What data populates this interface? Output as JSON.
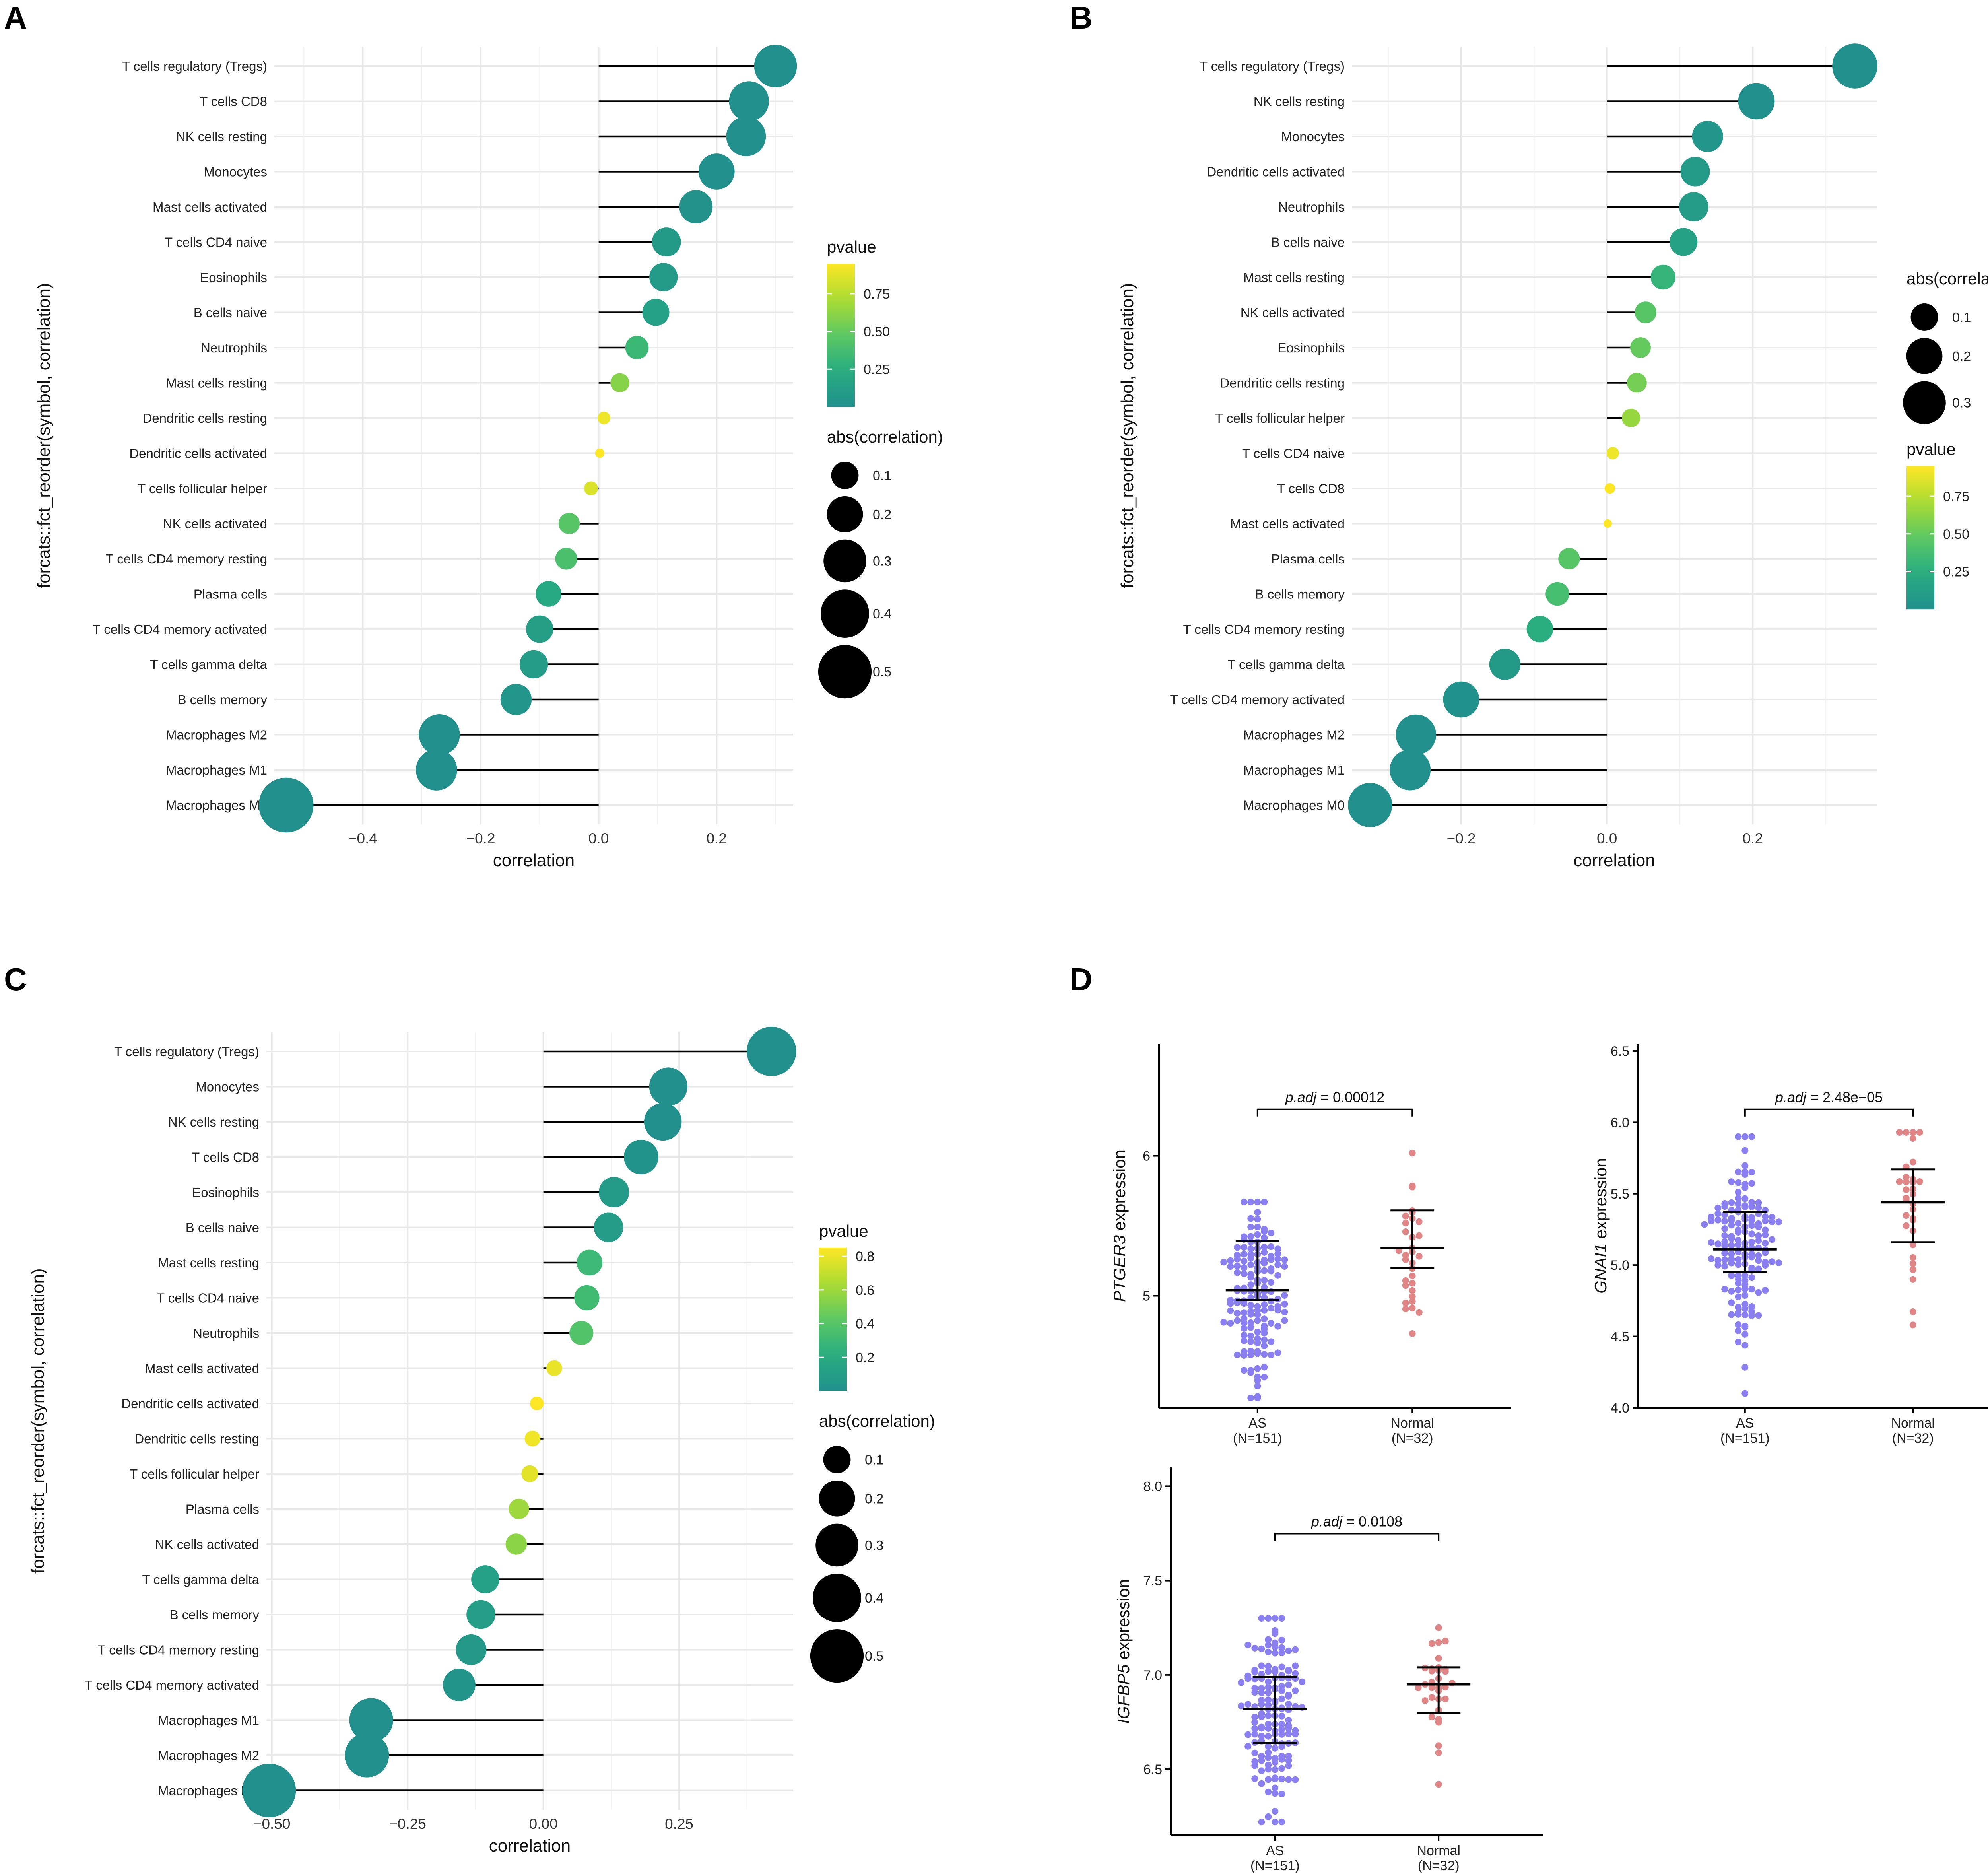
{
  "figure": {
    "panels": [
      "A",
      "B",
      "C",
      "D"
    ]
  },
  "colors": {
    "viridis_low": "#21908c",
    "viridis_high": "#fde725",
    "as_color": "#8a7ff0",
    "normal_color": "#e08585"
  },
  "chart_data": [
    {
      "panel": "A",
      "type": "scatter",
      "style": "lollipop",
      "xlabel": "correlation",
      "ylabel": "forcats::fct_reorder(symbol, correlation)",
      "xlim": [
        -0.55,
        0.33
      ],
      "xticks": [
        -0.4,
        -0.2,
        0.0,
        0.2
      ],
      "xtick_labels": [
        "−0.4",
        "−0.2",
        "0.0",
        "0.2"
      ],
      "legend_pvalue": {
        "title": "pvalue",
        "labels": [
          "0.75",
          "0.50",
          "0.25"
        ],
        "values": [
          0.75,
          0.5,
          0.25
        ],
        "range": [
          0.0,
          0.95
        ]
      },
      "legend_size": {
        "title": "abs(correlation)",
        "labels": [
          "0.1",
          "0.2",
          "0.3",
          "0.4",
          "0.5"
        ],
        "values": [
          0.1,
          0.2,
          0.3,
          0.4,
          0.5
        ]
      },
      "categories": [
        "T cells regulatory (Tregs)",
        "T cells CD8",
        "NK cells resting",
        "Monocytes",
        "Mast cells activated",
        "T cells CD4 naive",
        "Eosinophils",
        "B cells naive",
        "Neutrophils",
        "Mast cells resting",
        "Dendritic cells resting",
        "Dendritic cells activated",
        "T cells follicular helper",
        "NK cells activated",
        "T cells CD4 memory resting",
        "Plasma cells",
        "T cells CD4 memory activated",
        "T cells gamma delta",
        "B cells memory",
        "Macrophages M2",
        "Macrophages M1",
        "Macrophages M0"
      ],
      "correlation": [
        0.3,
        0.255,
        0.25,
        0.2,
        0.165,
        0.115,
        0.11,
        0.097,
        0.065,
        0.036,
        0.009,
        0.002,
        -0.013,
        -0.05,
        -0.055,
        -0.085,
        -0.1,
        -0.11,
        -0.14,
        -0.27,
        -0.275,
        -0.53
      ],
      "pvalue": [
        0.0,
        0.0,
        0.0,
        0.0,
        0.02,
        0.08,
        0.09,
        0.13,
        0.33,
        0.6,
        0.9,
        0.98,
        0.85,
        0.45,
        0.4,
        0.2,
        0.12,
        0.1,
        0.05,
        0.0,
        0.0,
        0.0
      ]
    },
    {
      "panel": "B",
      "type": "scatter",
      "style": "lollipop",
      "xlabel": "correlation",
      "ylabel": "forcats::fct_reorder(symbol, correlation)",
      "xlim": [
        -0.35,
        0.37
      ],
      "xticks": [
        -0.2,
        0.0,
        0.2
      ],
      "xtick_labels": [
        "−0.2",
        "0.0",
        "0.2"
      ],
      "legend_size": {
        "title": "abs(correlation)",
        "labels": [
          "0.1",
          "0.2",
          "0.3"
        ],
        "values": [
          0.1,
          0.2,
          0.3
        ]
      },
      "legend_pvalue": {
        "title": "pvalue",
        "labels": [
          "0.75",
          "0.50",
          "0.25"
        ],
        "values": [
          0.75,
          0.5,
          0.25
        ],
        "range": [
          0.0,
          0.95
        ]
      },
      "categories": [
        "T cells regulatory (Tregs)",
        "NK cells resting",
        "Monocytes",
        "Dendritic cells activated",
        "Neutrophils",
        "B cells naive",
        "Mast cells resting",
        "NK cells activated",
        "Eosinophils",
        "Dendritic cells resting",
        "T cells follicular helper",
        "T cells CD4 naive",
        "T cells CD8",
        "Mast cells activated",
        "Plasma cells",
        "B cells memory",
        "T cells CD4 memory resting",
        "T cells gamma delta",
        "T cells CD4 memory activated",
        "Macrophages M2",
        "Macrophages M1",
        "Macrophages M0"
      ],
      "correlation": [
        0.34,
        0.205,
        0.138,
        0.121,
        0.119,
        0.105,
        0.077,
        0.053,
        0.046,
        0.041,
        0.033,
        0.008,
        0.004,
        0.001,
        -0.052,
        -0.068,
        -0.092,
        -0.14,
        -0.2,
        -0.262,
        -0.27,
        -0.325
      ],
      "pvalue": [
        0.0,
        0.0,
        0.05,
        0.09,
        0.1,
        0.15,
        0.3,
        0.45,
        0.5,
        0.55,
        0.65,
        0.9,
        0.95,
        0.98,
        0.45,
        0.38,
        0.25,
        0.08,
        0.01,
        0.0,
        0.0,
        0.0
      ]
    },
    {
      "panel": "C",
      "type": "scatter",
      "style": "lollipop",
      "xlabel": "correlation",
      "ylabel": "forcats::fct_reorder(symbol, correlation)",
      "xlim": [
        -0.51,
        0.46
      ],
      "xticks": [
        -0.5,
        -0.25,
        0.0,
        0.25
      ],
      "xtick_labels": [
        "−0.50",
        "−0.25",
        "0.00",
        "0.25"
      ],
      "legend_pvalue": {
        "title": "pvalue",
        "labels": [
          "0.8",
          "0.6",
          "0.4",
          "0.2"
        ],
        "values": [
          0.8,
          0.6,
          0.4,
          0.2
        ],
        "range": [
          0.0,
          0.85
        ]
      },
      "legend_size": {
        "title": "abs(correlation)",
        "labels": [
          "0.1",
          "0.2",
          "0.3",
          "0.4",
          "0.5"
        ],
        "values": [
          0.1,
          0.2,
          0.3,
          0.4,
          0.5
        ]
      },
      "categories": [
        "T cells regulatory (Tregs)",
        "Monocytes",
        "NK cells resting",
        "T cells CD8",
        "Eosinophils",
        "B cells naive",
        "Mast cells resting",
        "T cells CD4 naive",
        "Neutrophils",
        "Mast cells activated",
        "Dendritic cells activated",
        "Dendritic cells resting",
        "T cells follicular helper",
        "Plasma cells",
        "NK cells activated",
        "T cells gamma delta",
        "B cells memory",
        "T cells CD4 memory resting",
        "T cells CD4 memory activated",
        "Macrophages M1",
        "Macrophages M2",
        "Macrophages M0"
      ],
      "correlation": [
        0.42,
        0.23,
        0.22,
        0.18,
        0.13,
        0.12,
        0.085,
        0.08,
        0.07,
        0.02,
        -0.012,
        -0.02,
        -0.025,
        -0.045,
        -0.05,
        -0.107,
        -0.115,
        -0.133,
        -0.155,
        -0.317,
        -0.325,
        -0.505
      ],
      "pvalue": [
        0.0,
        0.0,
        0.0,
        0.02,
        0.08,
        0.09,
        0.3,
        0.32,
        0.38,
        0.8,
        0.85,
        0.82,
        0.78,
        0.6,
        0.55,
        0.12,
        0.1,
        0.06,
        0.03,
        0.0,
        0.0,
        0.0
      ]
    },
    {
      "panel": "D",
      "type": "scatter",
      "style": "beeswarm",
      "subplots": [
        {
          "gene": "PTGER3",
          "ylabel_gene": "PTGER3",
          "ylabel_suffix": " expression",
          "ylim": [
            4.2,
            6.8
          ],
          "yticks": [
            5,
            6
          ],
          "ytick_labels": [
            "5",
            "6"
          ],
          "pval_prefix": "p.adj",
          "pval_value": " = 0.00012",
          "groups": [
            {
              "label": "AS",
              "n": "(N=151)",
              "n_points": 151,
              "median": 5.04,
              "q1": 4.97,
              "q3": 5.39,
              "min": 4.27,
              "max": 5.67
            },
            {
              "label": "Normal",
              "n": "(N=32)",
              "n_points": 32,
              "median": 5.34,
              "q1": 5.2,
              "q3": 5.61,
              "min": 4.73,
              "max": 6.02
            }
          ]
        },
        {
          "gene": "GNAI1",
          "ylabel_gene": "GNAI1",
          "ylabel_suffix": " expression",
          "ylim": [
            4.0,
            6.55
          ],
          "yticks": [
            4.0,
            4.5,
            5.0,
            5.5,
            6.0,
            6.5
          ],
          "ytick_labels": [
            "4.0",
            "4.5",
            "5.0",
            "5.5",
            "6.0",
            "6.5"
          ],
          "pval_prefix": "p.adj",
          "pval_value": " = 2.48e−05",
          "groups": [
            {
              "label": "AS",
              "n": "(N=151)",
              "n_points": 151,
              "median": 5.11,
              "q1": 4.95,
              "q3": 5.37,
              "min": 4.1,
              "max": 5.9
            },
            {
              "label": "Normal",
              "n": "(N=32)",
              "n_points": 32,
              "median": 5.44,
              "q1": 5.16,
              "q3": 5.67,
              "min": 4.58,
              "max": 5.93
            }
          ]
        },
        {
          "gene": "IGFBP5",
          "ylabel_gene": "IGFBP5",
          "ylabel_suffix": " expression",
          "ylim": [
            6.15,
            8.1
          ],
          "yticks": [
            6.5,
            7.0,
            7.5,
            8.0
          ],
          "ytick_labels": [
            "6.5",
            "7.0",
            "7.5",
            "8.0"
          ],
          "pval_prefix": "p.adj",
          "pval_value": " = 0.0108",
          "groups": [
            {
              "label": "AS",
              "n": "(N=151)",
              "n_points": 151,
              "median": 6.82,
              "q1": 6.64,
              "q3": 6.99,
              "min": 6.22,
              "max": 7.3
            },
            {
              "label": "Normal",
              "n": "(N=32)",
              "n_points": 32,
              "median": 6.95,
              "q1": 6.8,
              "q3": 7.04,
              "min": 6.42,
              "max": 7.25
            }
          ]
        }
      ]
    }
  ]
}
